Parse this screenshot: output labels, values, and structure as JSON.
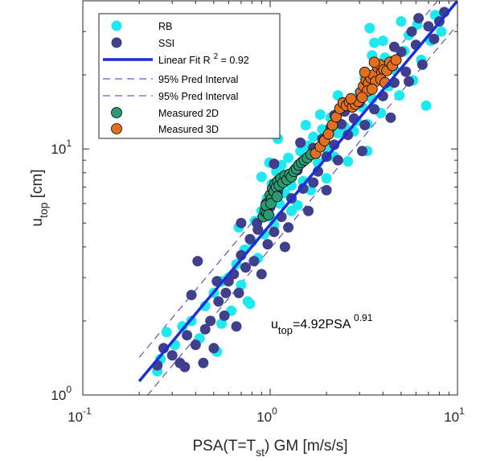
{
  "chart_data": {
    "type": "scatter",
    "xscale": "log",
    "yscale": "log",
    "xlim": [
      0.1,
      10
    ],
    "ylim": [
      1,
      40
    ],
    "xlabel": {
      "main": "PSA(T=T",
      "sub": "st",
      "rest": ") GM [m/s/s]"
    },
    "ylabel": {
      "main": "u",
      "sub": "top",
      "rest": " [cm]"
    },
    "xticks": [
      {
        "value": 0.1,
        "base": "10",
        "exp": "-1"
      },
      {
        "value": 1,
        "base": "10",
        "exp": "0"
      },
      {
        "value": 10,
        "base": "10",
        "exp": "1"
      }
    ],
    "yticks": [
      {
        "value": 1,
        "base": "10",
        "exp": "0"
      },
      {
        "value": 10,
        "base": "10",
        "exp": "1"
      }
    ],
    "grid": false,
    "legend_position": "top-left",
    "fit": {
      "coef": 4.92,
      "exp": 0.91,
      "r2": 0.92,
      "pred_factor": 1.25,
      "x_range": [
        0.2,
        10
      ]
    },
    "annotation": {
      "main": "u",
      "sub": "top",
      "eq": "=4.92PSA ",
      "sup": "0.91"
    },
    "legend": [
      {
        "label": "RB",
        "kind": "dot",
        "color": "#1ee8f0"
      },
      {
        "label": "SSI",
        "kind": "dot",
        "color": "#3f3f8c"
      },
      {
        "label": "Linear Fit R",
        "sup": "2",
        "suffix": " = 0.92",
        "kind": "line",
        "color": "#1a2fd6"
      },
      {
        "label": "95% Pred Interval",
        "kind": "dash",
        "color": "#3a3ac0"
      },
      {
        "label": "95% Pred Interval",
        "kind": "dash",
        "color": "#3a3ac0"
      },
      {
        "label": "Measured 2D",
        "kind": "dot-edge",
        "color": "#2a9a73"
      },
      {
        "label": "Measured 3D",
        "kind": "dot-edge",
        "color": "#e07020"
      }
    ],
    "series": [
      {
        "name": "RB",
        "color": "#1ee8f0",
        "style": "plain",
        "points": [
          [
            0.26,
            1.4
          ],
          [
            0.28,
            1.8
          ],
          [
            0.31,
            1.6
          ],
          [
            0.34,
            1.9
          ],
          [
            0.38,
            2.0
          ],
          [
            0.42,
            1.7
          ],
          [
            0.45,
            2.3
          ],
          [
            0.5,
            2.6
          ],
          [
            0.52,
            1.5
          ],
          [
            0.55,
            2.9
          ],
          [
            0.6,
            3.0
          ],
          [
            0.62,
            2.2
          ],
          [
            0.66,
            3.4
          ],
          [
            0.7,
            2.8
          ],
          [
            0.73,
            3.9
          ],
          [
            0.76,
            2.4
          ],
          [
            0.8,
            4.2
          ],
          [
            0.83,
            5.1
          ],
          [
            0.86,
            3.6
          ],
          [
            0.9,
            5.6
          ],
          [
            0.93,
            4.5
          ],
          [
            0.96,
            6.3
          ],
          [
            1.0,
            5.3
          ],
          [
            1.02,
            7.2
          ],
          [
            1.05,
            4.9
          ],
          [
            1.08,
            8.1
          ],
          [
            1.12,
            6.0
          ],
          [
            1.15,
            8.6
          ],
          [
            1.2,
            6.6
          ],
          [
            1.25,
            9.2
          ],
          [
            1.3,
            7.1
          ],
          [
            1.35,
            8.3
          ],
          [
            1.4,
            5.9
          ],
          [
            1.45,
            9.8
          ],
          [
            1.5,
            7.4
          ],
          [
            1.6,
            10.3
          ],
          [
            1.65,
            6.8
          ],
          [
            1.7,
            11.2
          ],
          [
            1.8,
            8.8
          ],
          [
            1.9,
            12.0
          ],
          [
            2.0,
            10.0
          ],
          [
            2.1,
            13.4
          ],
          [
            2.2,
            9.3
          ],
          [
            2.3,
            11.6
          ],
          [
            2.4,
            14.3
          ],
          [
            2.5,
            12.3
          ],
          [
            2.6,
            8.9
          ],
          [
            2.7,
            15.8
          ],
          [
            2.8,
            11.8
          ],
          [
            2.9,
            13.0
          ],
          [
            3.0,
            17.0
          ],
          [
            3.1,
            14.8
          ],
          [
            3.2,
            19.5
          ],
          [
            3.3,
            12.6
          ],
          [
            3.4,
            31.0
          ],
          [
            3.5,
            16.0
          ],
          [
            3.6,
            27.0
          ],
          [
            3.7,
            20.5
          ],
          [
            3.9,
            14.0
          ],
          [
            4.1,
            23.5
          ],
          [
            4.3,
            18.0
          ],
          [
            4.6,
            21.0
          ],
          [
            4.9,
            16.5
          ],
          [
            5.2,
            25.0
          ],
          [
            5.5,
            29.0
          ],
          [
            5.8,
            19.0
          ],
          [
            6.1,
            32.0
          ],
          [
            6.4,
            23.0
          ],
          [
            6.8,
            15.0
          ],
          [
            7.2,
            27.5
          ],
          [
            7.6,
            35.0
          ],
          [
            8.2,
            30.0
          ],
          [
            3.3,
            9.8
          ],
          [
            2.0,
            7.6
          ],
          [
            0.78,
            2.35
          ],
          [
            1.3,
            5.6
          ],
          [
            1.1,
            11.0
          ],
          [
            0.99,
            8.8
          ],
          [
            2.3,
            16.5
          ],
          [
            4.0,
            27.5
          ],
          [
            0.55,
            1.95
          ],
          [
            0.9,
            7.7
          ],
          [
            1.55,
            12.5
          ],
          [
            3.5,
            24.0
          ],
          [
            5.0,
            33.0
          ],
          [
            0.25,
            1.25
          ],
          [
            0.68,
            4.8
          ],
          [
            1.85,
            13.8
          ]
        ]
      },
      {
        "name": "SSI",
        "color": "#3f3f8c",
        "style": "plain",
        "points": [
          [
            0.25,
            1.32
          ],
          [
            0.27,
            1.55
          ],
          [
            0.3,
            1.45
          ],
          [
            0.33,
            1.35
          ],
          [
            0.36,
            1.75
          ],
          [
            0.4,
            1.6
          ],
          [
            0.41,
            3.5
          ],
          [
            0.44,
            1.35
          ],
          [
            0.48,
            2.0
          ],
          [
            0.5,
            1.55
          ],
          [
            0.53,
            2.4
          ],
          [
            0.57,
            2.1
          ],
          [
            0.6,
            2.9
          ],
          [
            0.64,
            3.1
          ],
          [
            0.68,
            2.6
          ],
          [
            0.7,
            3.7
          ],
          [
            0.74,
            3.3
          ],
          [
            0.78,
            4.3
          ],
          [
            0.82,
            3.5
          ],
          [
            0.86,
            4.7
          ],
          [
            0.9,
            3.1
          ],
          [
            0.94,
            5.4
          ],
          [
            0.97,
            4.1
          ],
          [
            1.0,
            5.8
          ],
          [
            1.05,
            4.6
          ],
          [
            1.1,
            6.7
          ],
          [
            1.15,
            5.3
          ],
          [
            1.2,
            7.4
          ],
          [
            1.25,
            4.8
          ],
          [
            1.3,
            6.3
          ],
          [
            1.4,
            8.2
          ],
          [
            1.5,
            6.9
          ],
          [
            1.55,
            9.1
          ],
          [
            1.6,
            5.6
          ],
          [
            1.7,
            10.1
          ],
          [
            1.8,
            8.1
          ],
          [
            1.9,
            11.0
          ],
          [
            2.0,
            9.3
          ],
          [
            2.1,
            12.2
          ],
          [
            2.2,
            10.4
          ],
          [
            2.3,
            9.0
          ],
          [
            2.4,
            12.6
          ],
          [
            2.5,
            14.2
          ],
          [
            2.6,
            11.4
          ],
          [
            2.8,
            13.3
          ],
          [
            3.0,
            15.4
          ],
          [
            3.2,
            12.5
          ],
          [
            3.4,
            17.3
          ],
          [
            3.6,
            14.5
          ],
          [
            3.8,
            20.2
          ],
          [
            4.0,
            16.4
          ],
          [
            4.3,
            22.2
          ],
          [
            4.6,
            18.6
          ],
          [
            5.0,
            24.8
          ],
          [
            5.3,
            20.6
          ],
          [
            5.7,
            30.0
          ],
          [
            6.0,
            26.5
          ],
          [
            6.5,
            22.0
          ],
          [
            7.0,
            31.5
          ],
          [
            7.5,
            28.0
          ],
          [
            8.0,
            33.0
          ],
          [
            8.5,
            36.0
          ],
          [
            0.66,
            1.9
          ],
          [
            1.2,
            4.0
          ],
          [
            2.0,
            6.8
          ],
          [
            3.1,
            9.8
          ],
          [
            0.38,
            2.55
          ],
          [
            0.7,
            5.0
          ],
          [
            1.45,
            10.6
          ],
          [
            4.4,
            13.4
          ],
          [
            0.58,
            2.6
          ],
          [
            0.95,
            6.0
          ],
          [
            1.7,
            7.3
          ],
          [
            2.7,
            16.0
          ],
          [
            5.5,
            18.8
          ],
          [
            0.35,
            1.3
          ],
          [
            0.45,
            1.85
          ],
          [
            0.85,
            5.0
          ],
          [
            1.3,
            7.8
          ],
          [
            2.2,
            13.7
          ],
          [
            3.3,
            18.8
          ],
          [
            4.6,
            26.0
          ],
          [
            6.2,
            34.0
          ],
          [
            0.52,
            2.9
          ],
          [
            1.05,
            8.7
          ]
        ]
      },
      {
        "name": "Measured 2D",
        "color": "#2a9a73",
        "style": "edge",
        "points": [
          [
            0.92,
            5.3
          ],
          [
            0.94,
            5.6
          ],
          [
            0.96,
            5.5
          ],
          [
            0.97,
            5.9
          ],
          [
            0.99,
            6.1
          ],
          [
            1.0,
            6.5
          ],
          [
            1.02,
            6.3
          ],
          [
            1.03,
            6.9
          ],
          [
            1.05,
            6.7
          ],
          [
            1.06,
            7.2
          ],
          [
            1.08,
            7.0
          ],
          [
            1.1,
            7.4
          ],
          [
            1.12,
            7.1
          ],
          [
            1.14,
            7.6
          ],
          [
            1.17,
            7.3
          ],
          [
            1.2,
            7.8
          ],
          [
            1.23,
            7.5
          ],
          [
            1.27,
            7.9
          ],
          [
            1.3,
            7.7
          ],
          [
            1.34,
            8.1
          ],
          [
            1.38,
            8.3
          ],
          [
            1.42,
            8.6
          ],
          [
            1.47,
            8.8
          ],
          [
            1.52,
            9.0
          ],
          [
            1.58,
            9.2
          ],
          [
            1.65,
            9.5
          ],
          [
            0.95,
            5.9
          ],
          [
            1.01,
            6.0
          ],
          [
            1.09,
            6.4
          ],
          [
            0.98,
            5.4
          ]
        ]
      },
      {
        "name": "Measured 3D",
        "color": "#e07020",
        "style": "edge",
        "points": [
          [
            1.75,
            9.6
          ],
          [
            1.85,
            10.2
          ],
          [
            1.95,
            10.8
          ],
          [
            2.05,
            11.5
          ],
          [
            2.15,
            12.5
          ],
          [
            2.25,
            13.5
          ],
          [
            2.35,
            14.6
          ],
          [
            2.45,
            15.4
          ],
          [
            2.55,
            15.0
          ],
          [
            2.65,
            15.5
          ],
          [
            2.75,
            14.8
          ],
          [
            2.85,
            15.2
          ],
          [
            2.95,
            15.6
          ],
          [
            3.05,
            17.0
          ],
          [
            3.15,
            18.0
          ],
          [
            3.25,
            19.0
          ],
          [
            3.35,
            18.5
          ],
          [
            3.45,
            19.4
          ],
          [
            3.55,
            20.0
          ],
          [
            3.65,
            18.8
          ],
          [
            3.75,
            21.5
          ],
          [
            3.85,
            22.0
          ],
          [
            3.95,
            20.5
          ],
          [
            4.05,
            21.0
          ],
          [
            4.2,
            20.8
          ],
          [
            4.35,
            22.5
          ],
          [
            4.5,
            21.8
          ],
          [
            4.7,
            23.0
          ],
          [
            3.3,
            17.2
          ],
          [
            3.5,
            17.5
          ],
          [
            3.9,
            19.2
          ],
          [
            3.2,
            20.5
          ],
          [
            3.6,
            22.5
          ],
          [
            4.1,
            18.6
          ],
          [
            2.7,
            16.0
          ],
          [
            3.1,
            16.2
          ]
        ]
      }
    ]
  }
}
